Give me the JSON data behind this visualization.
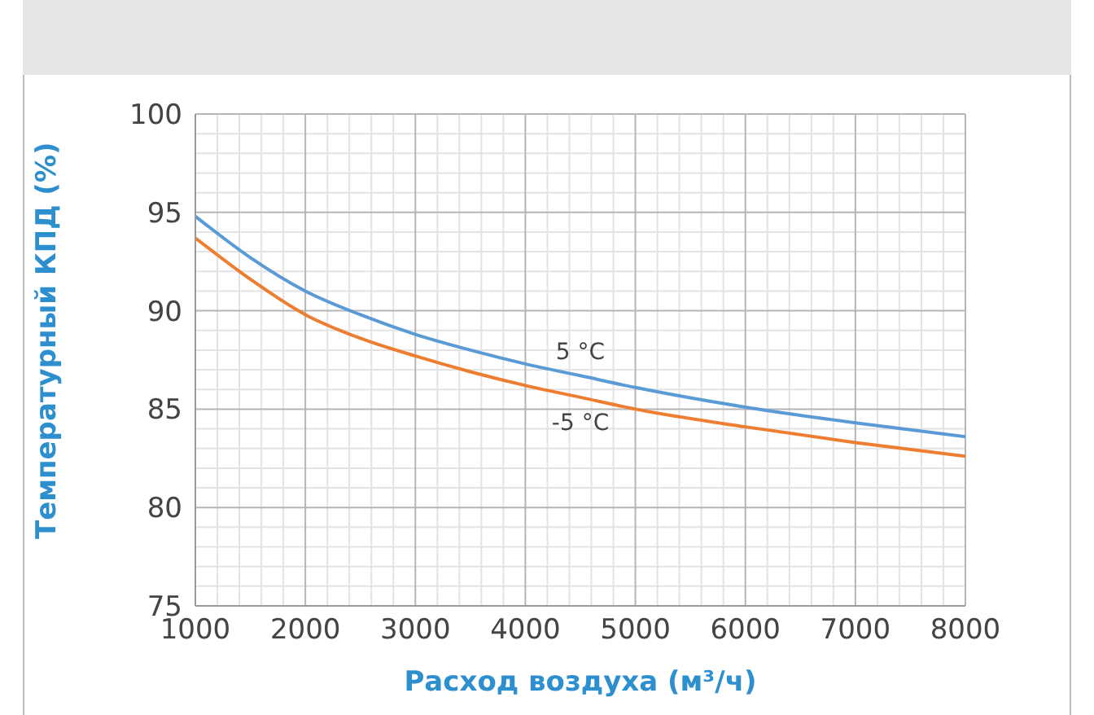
{
  "chart_data": {
    "type": "line",
    "xlabel": "Расход воздуха (м³/ч)",
    "ylabel": "Температурный КПД (%)",
    "x": [
      1000,
      1500,
      2000,
      2500,
      3000,
      3500,
      4000,
      4500,
      5000,
      6000,
      7000,
      8000
    ],
    "series": [
      {
        "name": "5 °C",
        "color": "#5b9bd5",
        "values": [
          94.8,
          92.7,
          91.0,
          89.8,
          88.8,
          88.0,
          87.3,
          86.7,
          86.1,
          85.1,
          84.3,
          83.6
        ]
      },
      {
        "name": "-5 °C",
        "color": "#ed7d31",
        "values": [
          93.7,
          91.6,
          89.8,
          88.6,
          87.7,
          86.9,
          86.2,
          85.6,
          85.0,
          84.1,
          83.3,
          82.6
        ]
      }
    ],
    "xlim": [
      1000,
      8000
    ],
    "xticks": [
      1000,
      2000,
      3000,
      4000,
      5000,
      6000,
      7000,
      8000
    ],
    "ylim": [
      75,
      100
    ],
    "yticks": [
      75,
      80,
      85,
      90,
      95,
      100
    ],
    "grid": true,
    "marker": "none",
    "line_style": "solid"
  }
}
